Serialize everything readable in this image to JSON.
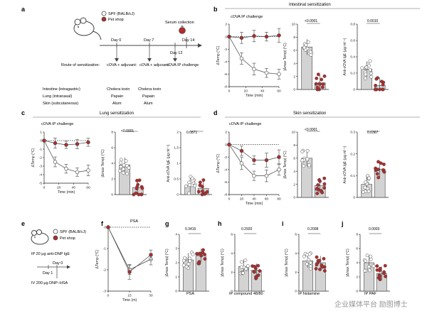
{
  "colors": {
    "spf": "#ffffff",
    "pet": "#b22b2b",
    "bar": "#d3d3d3",
    "axis": "#222222"
  },
  "panel_letters": [
    "a",
    "b",
    "c",
    "d",
    "e",
    "f",
    "g",
    "h",
    "i",
    "j"
  ],
  "legend": {
    "spf": "SPF (BALB/cJ)",
    "pet": "Pet shop"
  },
  "panel_a": {
    "serum": "Serum collection",
    "days": [
      "Day 0",
      "Day 7",
      "Day 12",
      "Day 14"
    ],
    "route_title": "Route of\nsensitization:",
    "routes": [
      "Intestine (intragastric)",
      "Lung (intranasal)",
      "Skin (subcutaneous)"
    ],
    "col1_title": "cOVA +\nadjuvant:",
    "col2_title": "cOVA +\nadjuvant:",
    "col3_title": "cOVA\nIP challenge",
    "col1": [
      "Cholera toxin",
      "Papain",
      "Alum"
    ],
    "col2": [
      "Cholera toxin",
      "Papain",
      "Alum"
    ]
  },
  "sections": {
    "b": "Intestinal sensitization",
    "c": "Lung sensitization",
    "d": "Skin sensitization"
  },
  "panel_e": {
    "ip": "IP 20 μg anti-DNP IgE",
    "day0": "Day 0",
    "day1": "Day 1",
    "iv": "IV 200 μg DNP–HSA"
  },
  "labels": {
    "challenge": "cOVA IP challenge",
    "dtemp": "ΔTemp (°C)",
    "max_dtemp": "|Δmax Temp| (°C)",
    "anti_ova": "Anti-cOVA IgE (μg ml⁻¹)",
    "time": "Time (min)",
    "time_m": "Time (m)",
    "psa": "PSA"
  },
  "pvalues": {
    "b1": "<0.0001",
    "b2": "0.0010",
    "c1": "<0.0001",
    "c2": "0.0871",
    "d1": "<0.0001",
    "d2": "0.0367",
    "g": "0.3415",
    "h": "0.2920",
    "i": "0.2008",
    "j": "0.0003"
  },
  "bottom_xlabels": {
    "g": "PSA",
    "h": "IP compound 48/80",
    "i": "IP histamine",
    "j": "IP PAF"
  },
  "watermark": "企业媒体平台 励图博士",
  "chart_data": [
    {
      "id": "b-line",
      "type": "line",
      "title": "cOVA IP challenge",
      "xlabel": "Time (min)",
      "ylabel": "ΔTemp (°C)",
      "x": [
        0,
        15,
        30,
        45,
        60
      ],
      "xlim": [
        0,
        60
      ],
      "ylim": [
        -8,
        2
      ],
      "series": [
        {
          "name": "SPF (BALB/cJ)",
          "values": [
            0,
            -3.5,
            -5.2,
            -5.8,
            -6.0
          ]
        },
        {
          "name": "Pet shop",
          "values": [
            0,
            -0.2,
            0.1,
            0.0,
            0.2
          ]
        }
      ]
    },
    {
      "id": "b-bar1",
      "type": "bar",
      "categories": [
        "SPF (BALB/cJ)",
        "Pet shop"
      ],
      "values": [
        6.5,
        1.0
      ],
      "ylim": [
        0,
        10
      ]
    },
    {
      "id": "b-bar2",
      "type": "bar",
      "categories": [
        "SPF (BALB/cJ)",
        "Pet shop"
      ],
      "values": [
        0.25,
        0.05
      ],
      "ylim": [
        0,
        0.8
      ]
    },
    {
      "id": "c-line",
      "type": "line",
      "title": "cOVA IP challenge",
      "xlabel": "Time (min)",
      "ylabel": "ΔTemp (°C)",
      "x": [
        0,
        15,
        30,
        45,
        60
      ],
      "xlim": [
        0,
        60
      ],
      "ylim": [
        -5,
        1
      ],
      "series": [
        {
          "name": "SPF (BALB/cJ)",
          "values": [
            0,
            -2.5,
            -3.3,
            -3.7,
            -3.5
          ]
        },
        {
          "name": "Pet shop",
          "values": [
            0,
            -0.3,
            -0.5,
            -0.4,
            -0.2
          ]
        }
      ]
    },
    {
      "id": "c-bar1",
      "type": "bar",
      "categories": [
        "SPF (BALB/cJ)",
        "Pet shop"
      ],
      "values": [
        3.8,
        0.9
      ],
      "ylim": [
        0,
        8
      ]
    },
    {
      "id": "c-bar2",
      "type": "bar",
      "categories": [
        "SPF (BALB/cJ)",
        "Pet shop"
      ],
      "values": [
        0.3,
        0.2
      ],
      "ylim": [
        0,
        2
      ]
    },
    {
      "id": "d-line",
      "type": "line",
      "title": "cOVA IP challenge",
      "xlabel": "Time (min)",
      "ylabel": "ΔTemp (°C)",
      "x": [
        0,
        20,
        40,
        60,
        80
      ],
      "xlim": [
        0,
        80
      ],
      "ylim": [
        -8,
        2
      ],
      "series": [
        {
          "name": "SPF (BALB/cJ)",
          "values": [
            0,
            -3.0,
            -5.0,
            -5.0,
            -4.0
          ]
        },
        {
          "name": "Pet shop",
          "values": [
            0,
            -1.0,
            -2.5,
            -2.5,
            -2.0
          ]
        }
      ]
    },
    {
      "id": "d-bar1",
      "type": "bar",
      "categories": [
        "SPF (BALB/cJ)",
        "Pet shop"
      ],
      "values": [
        6.0,
        1.8
      ],
      "ylim": [
        0,
        10
      ]
    },
    {
      "id": "d-bar2",
      "type": "bar",
      "categories": [
        "SPF (BALB/cJ)",
        "Pet shop"
      ],
      "values": [
        0.06,
        0.13
      ],
      "ylim": [
        0,
        0.3
      ]
    },
    {
      "id": "f-line",
      "type": "line",
      "title": "PSA",
      "xlabel": "Time (m)",
      "ylabel": "ΔTemp (°C)",
      "x": [
        0,
        15,
        30
      ],
      "xlim": [
        0,
        30
      ],
      "ylim": [
        -3,
        0
      ],
      "series": [
        {
          "name": "SPF (BALB/cJ)",
          "values": [
            0,
            -2.0,
            -1.5
          ]
        },
        {
          "name": "Pet shop",
          "values": [
            0,
            -2.1,
            -1.3
          ]
        }
      ]
    },
    {
      "id": "g-bar",
      "type": "bar",
      "categories": [
        "SPF (BALB/cJ)",
        "Pet shop"
      ],
      "values": [
        2.2,
        2.5
      ],
      "ylim": [
        0,
        4
      ]
    },
    {
      "id": "h-bar",
      "type": "bar",
      "categories": [
        "SPF (BALB/cJ)",
        "Pet shop"
      ],
      "values": [
        2.6,
        2.2
      ],
      "ylim": [
        0,
        6
      ]
    },
    {
      "id": "i-bar",
      "type": "bar",
      "categories": [
        "SPF (BALB/cJ)",
        "Pet shop"
      ],
      "values": [
        3.2,
        3.0
      ],
      "ylim": [
        0,
        6
      ]
    },
    {
      "id": "j-bar",
      "type": "bar",
      "categories": [
        "SPF (BALB/cJ)",
        "Pet shop"
      ],
      "values": [
        4.0,
        2.5
      ],
      "ylim": [
        0,
        8
      ]
    }
  ]
}
